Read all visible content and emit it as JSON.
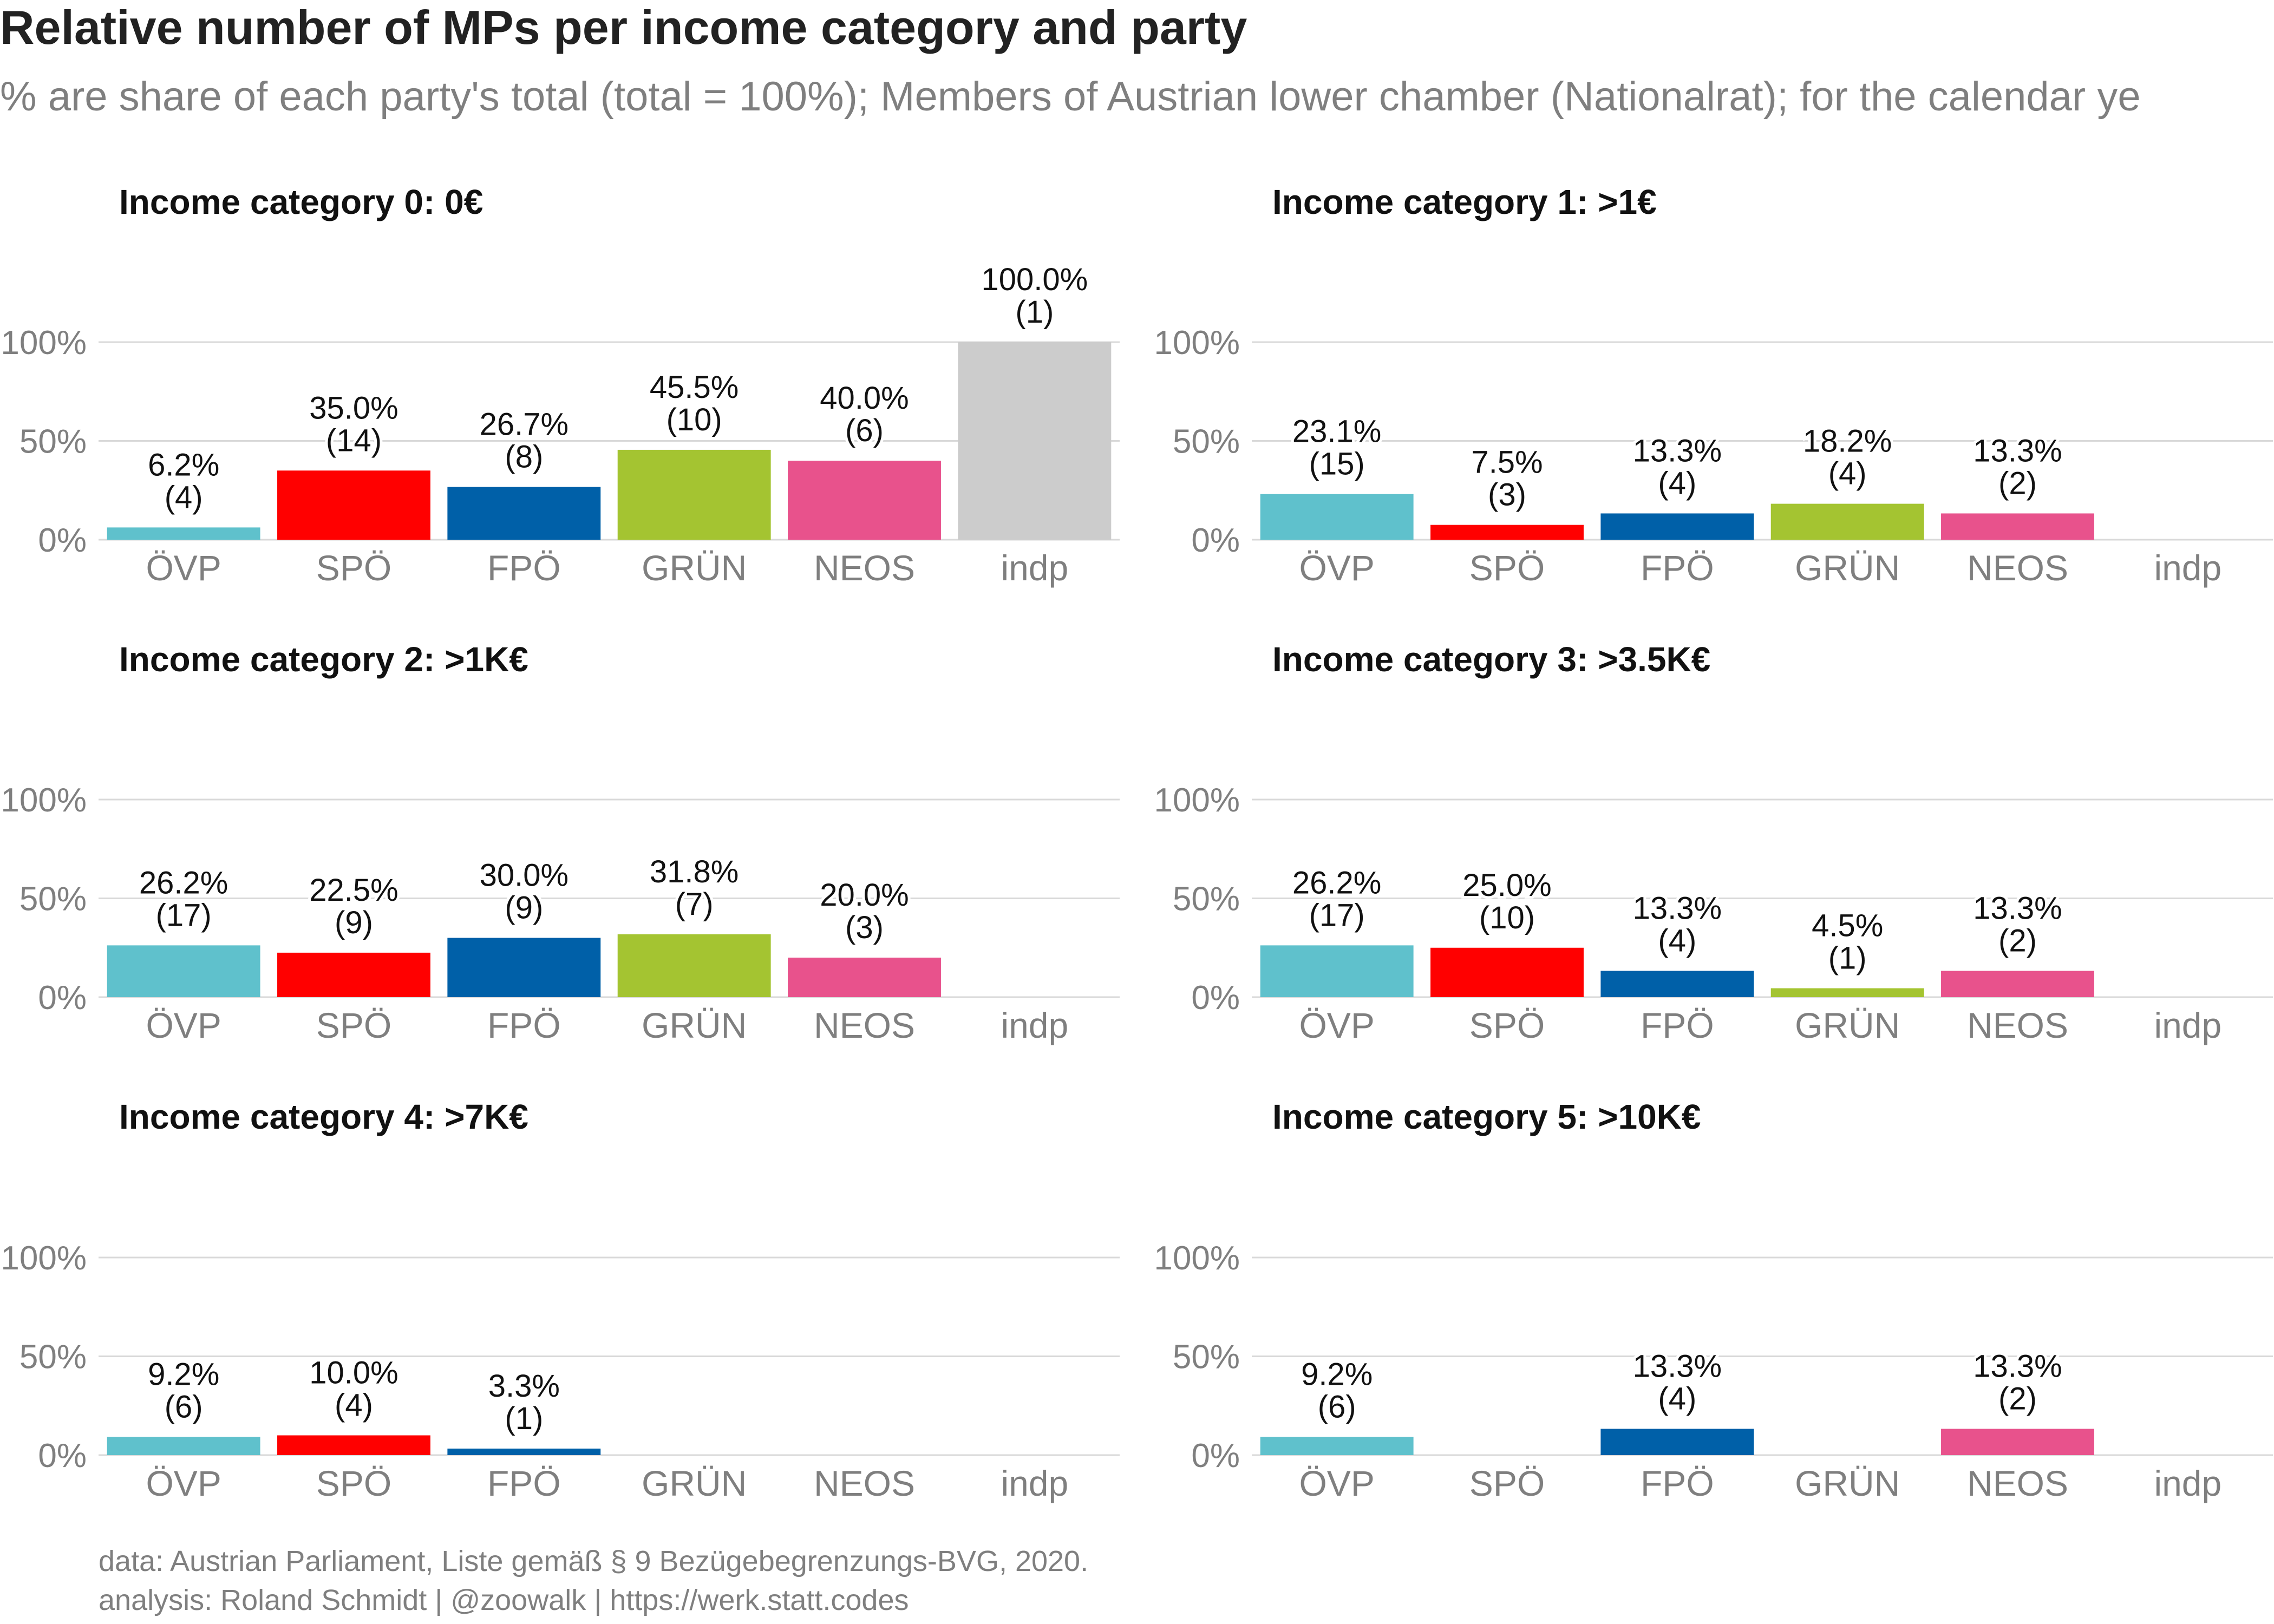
{
  "title": "Relative number of MPs per income category and party",
  "subtitle": "% are share of each party's total (total = 100%); Members of Austrian lower chamber (Nationalrat); for the calendar ye",
  "caption": {
    "line1": "data: Austrian Parliament, Liste gemäß § 9 Bezügebegrenzungs-BVG, 2020.",
    "line2": "analysis: Roland Schmidt | @zoowalk | https://werk.statt.codes"
  },
  "colors": {
    "ÖVP": "#5fc1cc",
    "SPÖ": "#ff0000",
    "FPÖ": "#0060a8",
    "GRÜN": "#a4c431",
    "NEOS": "#e8528c",
    "indp": "#cccccc"
  },
  "chart_data": {
    "type": "bar",
    "categories": [
      "ÖVP",
      "SPÖ",
      "FPÖ",
      "GRÜN",
      "NEOS",
      "indp"
    ],
    "ylim": [
      0,
      100
    ],
    "yticks": [
      "0%",
      "50%",
      "100%"
    ],
    "grid": true,
    "panels": [
      {
        "title": "Income category 0: 0€",
        "values": [
          6.2,
          35.0,
          26.7,
          45.5,
          40.0,
          100.0
        ],
        "counts": [
          4,
          14,
          8,
          10,
          6,
          1
        ],
        "labels": [
          "6.2%",
          "35.0%",
          "26.7%",
          "45.5%",
          "40.0%",
          "100.0%"
        ],
        "count_labels": [
          "(4)",
          "(14)",
          "(8)",
          "(10)",
          "(6)",
          "(1)"
        ]
      },
      {
        "title": "Income category 1: >1€",
        "values": [
          23.1,
          7.5,
          13.3,
          18.2,
          13.3,
          null
        ],
        "counts": [
          15,
          3,
          4,
          4,
          2,
          null
        ],
        "labels": [
          "23.1%",
          "7.5%",
          "13.3%",
          "18.2%",
          "13.3%",
          null
        ],
        "count_labels": [
          "(15)",
          "(3)",
          "(4)",
          "(4)",
          "(2)",
          null
        ]
      },
      {
        "title": "Income category 2: >1K€",
        "values": [
          26.2,
          22.5,
          30.0,
          31.8,
          20.0,
          null
        ],
        "counts": [
          17,
          9,
          9,
          7,
          3,
          null
        ],
        "labels": [
          "26.2%",
          "22.5%",
          "30.0%",
          "31.8%",
          "20.0%",
          null
        ],
        "count_labels": [
          "(17)",
          "(9)",
          "(9)",
          "(7)",
          "(3)",
          null
        ]
      },
      {
        "title": "Income category 3: >3.5K€",
        "values": [
          26.2,
          25.0,
          13.3,
          4.5,
          13.3,
          null
        ],
        "counts": [
          17,
          10,
          4,
          1,
          2,
          null
        ],
        "labels": [
          "26.2%",
          "25.0%",
          "13.3%",
          "4.5%",
          "13.3%",
          null
        ],
        "count_labels": [
          "(17)",
          "(10)",
          "(4)",
          "(1)",
          "(2)",
          null
        ]
      },
      {
        "title": "Income category 4: >7K€",
        "values": [
          9.2,
          10.0,
          3.3,
          null,
          null,
          null
        ],
        "counts": [
          6,
          4,
          1,
          null,
          null,
          null
        ],
        "labels": [
          "9.2%",
          "10.0%",
          "3.3%",
          null,
          null,
          null
        ],
        "count_labels": [
          "(6)",
          "(4)",
          "(1)",
          null,
          null,
          null
        ]
      },
      {
        "title": "Income category 5: >10K€",
        "values": [
          9.2,
          null,
          13.3,
          null,
          13.3,
          null
        ],
        "counts": [
          6,
          null,
          4,
          null,
          2,
          null
        ],
        "labels": [
          "9.2%",
          null,
          "13.3%",
          null,
          "13.3%",
          null
        ],
        "count_labels": [
          "(6)",
          null,
          "(4)",
          null,
          "(2)",
          null
        ]
      }
    ]
  }
}
